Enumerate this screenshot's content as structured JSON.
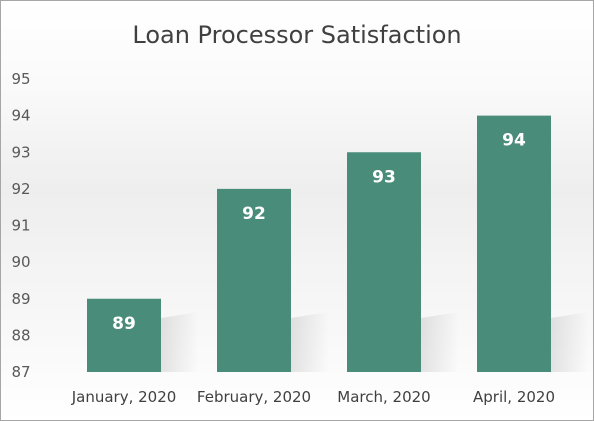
{
  "chart_data": {
    "type": "bar",
    "title": "Loan Processor Satisfaction",
    "categories": [
      "January, 2020",
      "February, 2020",
      "March, 2020",
      "April, 2020"
    ],
    "values": [
      89,
      92,
      93,
      94
    ],
    "data_labels": [
      "89",
      "92",
      "93",
      "94"
    ],
    "y_ticks": [
      "87",
      "88",
      "89",
      "90",
      "91",
      "92",
      "93",
      "94",
      "95"
    ],
    "ylim": [
      87,
      95
    ],
    "xlabel": "",
    "ylabel": "",
    "grid": false,
    "legend": "none",
    "bar_color": "#4a8c7a"
  }
}
